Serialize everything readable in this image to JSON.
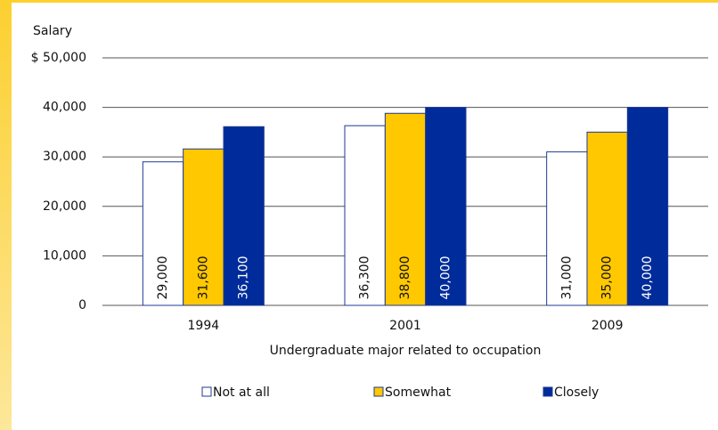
{
  "chart_data": {
    "type": "bar",
    "ylabel": "Salary",
    "xlabel": "Undergraduate major related to occupation",
    "categories": [
      "1994",
      "2001",
      "2009"
    ],
    "series": [
      {
        "name": "Not at all",
        "color": "#ffffff",
        "values": [
          29000,
          36300,
          31000
        ],
        "value_labels": [
          "29,000",
          "36,300",
          "31,000"
        ]
      },
      {
        "name": "Somewhat",
        "color": "#ffc800",
        "values": [
          31600,
          38800,
          35000
        ],
        "value_labels": [
          "31,600",
          "38,800",
          "35,000"
        ]
      },
      {
        "name": "Closely",
        "color": "#002b9a",
        "values": [
          36100,
          40000,
          40000
        ],
        "value_labels": [
          "36,100",
          "40,000",
          "40,000"
        ]
      }
    ],
    "ylim": [
      0,
      50000
    ],
    "yticks": [
      0,
      {
        "value": 10000,
        "label": "10,000"
      },
      {
        "value": 20000,
        "label": "20,000"
      },
      {
        "value": 30000,
        "label": "30,000"
      },
      {
        "value": 40000,
        "label": "40,000"
      },
      {
        "value": 50000,
        "label": "$ 50,000"
      }
    ],
    "grid": true,
    "legend": "bottom"
  }
}
